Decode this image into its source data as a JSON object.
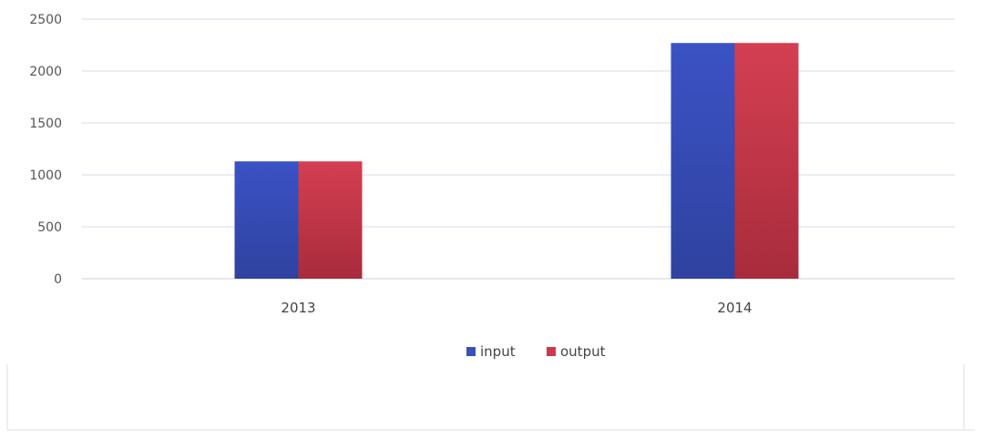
{
  "chart_data": {
    "type": "bar",
    "categories": [
      "2013",
      "2014"
    ],
    "series": [
      {
        "name": "input",
        "values": [
          1130,
          2270
        ],
        "color": "#3a50b8"
      },
      {
        "name": "output",
        "values": [
          1130,
          2270
        ],
        "color": "#c83a4c"
      }
    ],
    "yticks": [
      "0",
      "500",
      "1000",
      "1500",
      "2000",
      "2500"
    ],
    "ylim": [
      0,
      2500
    ],
    "grid": true,
    "legend_position": "bottom",
    "gridline_color": "#d8d8e8"
  }
}
